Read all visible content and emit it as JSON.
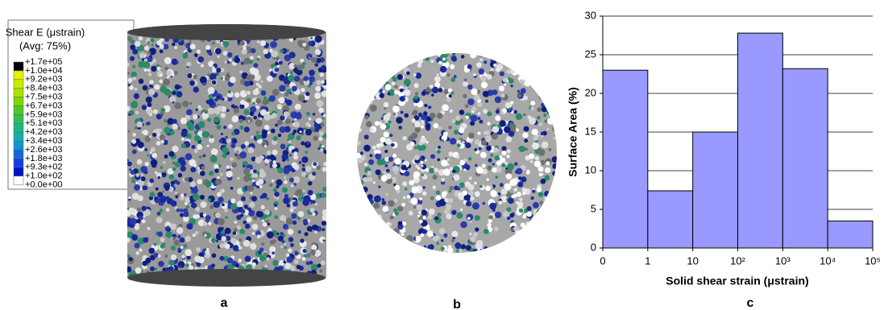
{
  "legend": {
    "title": "Shear E (μstrain)",
    "subtitle": "(Avg: 75%)",
    "labels": [
      "+1.7e+05",
      "+1.0e+04",
      "+9.2e+03",
      "+8.4e+03",
      "+7.5e+03",
      "+6.7e+03",
      "+5.9e+03",
      "+5.1e+03",
      "+4.2e+03",
      "+3.4e+03",
      "+2.6e+03",
      "+1.8e+03",
      "+9.3e+02",
      "+1.0e+02",
      "+0.0e+00"
    ],
    "colors": [
      "#000000",
      "#e6ef00",
      "#c8ee00",
      "#a6e400",
      "#7cd800",
      "#4ec820",
      "#2cc050",
      "#18b880",
      "#10b0b0",
      "#1094d0",
      "#1068e0",
      "#1040e0",
      "#0010c8",
      "#ffffff"
    ]
  },
  "panels": [
    "a",
    "b",
    "c"
  ],
  "chart_data": {
    "type": "histogram",
    "bins": [
      0,
      1,
      10,
      {
        "value": 100,
        "label": "10²"
      },
      {
        "value": 1000,
        "label": "10³"
      },
      {
        "value": 10000,
        "label": "10⁴"
      },
      {
        "value": 100000,
        "label": "10⁵"
      }
    ],
    "values": [
      23,
      7.4,
      15,
      27.8,
      23.2,
      3.5
    ],
    "color": "#9999ff",
    "x_label": "Solid shear strain (μstrain)",
    "y_label": "Surface Area (%)",
    "ylim": [
      0,
      30
    ],
    "yticks": [
      0,
      5,
      10,
      15,
      20,
      25,
      30
    ],
    "grid": true
  }
}
